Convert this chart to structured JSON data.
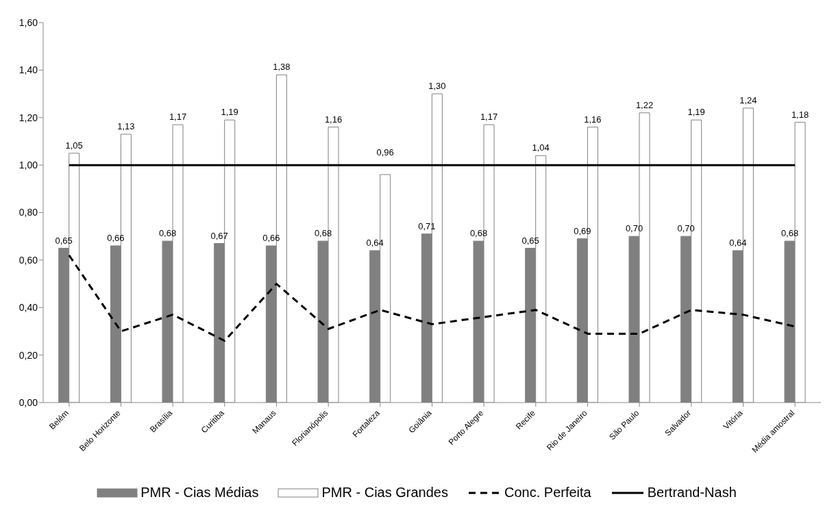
{
  "chart_data": {
    "type": "bar",
    "categories": [
      "Belém",
      "Belo Horizonte",
      "Brasília",
      "Curitiba",
      "Manaus",
      "Florianópolis",
      "Fortaleza",
      "Goiânia",
      "Porto Alegre",
      "Recife",
      "Rio de Janeiro",
      "São Paulo",
      "Salvador",
      "Vitória",
      "Média amostral"
    ],
    "series": [
      {
        "name": "PMR - Cias Médias",
        "color": "#808080",
        "values": [
          0.65,
          0.66,
          0.68,
          0.67,
          0.66,
          0.68,
          0.64,
          0.71,
          0.68,
          0.65,
          0.69,
          0.7,
          0.7,
          0.64,
          0.68
        ],
        "value_labels": [
          "0,65",
          "0,66",
          "0,68",
          "0,67",
          "0,66",
          "0,68",
          "0,64",
          "0,71",
          "0,68",
          "0,65",
          "0,69",
          "0,70",
          "0,70",
          "0,64",
          "0,68"
        ]
      },
      {
        "name": "PMR - Cias Grandes",
        "color": "#ffffff",
        "values": [
          1.05,
          1.13,
          1.17,
          1.19,
          1.38,
          1.16,
          0.96,
          1.3,
          1.17,
          1.04,
          1.16,
          1.22,
          1.19,
          1.24,
          1.18
        ],
        "value_labels": [
          "1,05",
          "1,13",
          "1,17",
          "1,19",
          "1,38",
          "1,16",
          "0,96",
          "1,30",
          "1,17",
          "1,04",
          "1,16",
          "1,22",
          "1,19",
          "1,24",
          "1,18"
        ]
      },
      {
        "name": "Conc. Perfeita",
        "type": "line",
        "line_style": "dashed",
        "color": "#000000",
        "values": [
          0.62,
          0.3,
          0.37,
          0.26,
          0.5,
          0.31,
          0.39,
          0.33,
          0.36,
          0.39,
          0.29,
          0.29,
          0.39,
          0.37,
          0.32
        ]
      },
      {
        "name": "Bertrand-Nash",
        "type": "line",
        "line_style": "solid",
        "color": "#000000",
        "values": [
          1.0,
          1.0,
          1.0,
          1.0,
          1.0,
          1.0,
          1.0,
          1.0,
          1.0,
          1.0,
          1.0,
          1.0,
          1.0,
          1.0,
          1.0
        ]
      }
    ],
    "ylim": [
      0,
      1.6
    ],
    "yticks": [
      {
        "value": 0,
        "label": "0,00"
      },
      {
        "value": 0.2,
        "label": "0,20"
      },
      {
        "value": 0.4,
        "label": "0,40"
      },
      {
        "value": 0.6,
        "label": "0,60"
      },
      {
        "value": 0.8,
        "label": "0,80"
      },
      {
        "value": 1.0,
        "label": "1,00"
      },
      {
        "value": 1.2,
        "label": "1,20"
      },
      {
        "value": 1.4,
        "label": "1,40"
      },
      {
        "value": 1.6,
        "label": "1,60"
      }
    ],
    "grid": false,
    "legend": "bottom",
    "marker": "none"
  }
}
